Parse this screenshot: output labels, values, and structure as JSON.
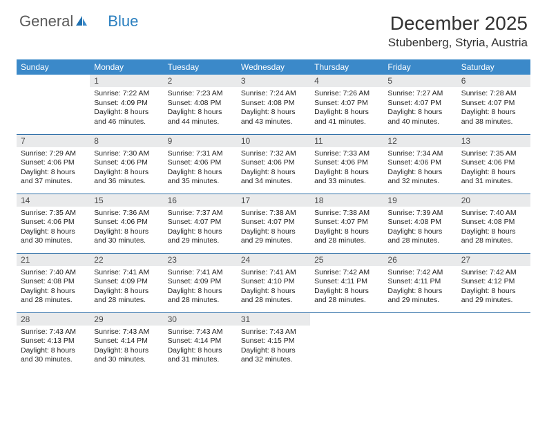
{
  "logo": {
    "text1": "General",
    "text2": "Blue"
  },
  "title": {
    "month": "December 2025",
    "location": "Stubenberg, Styria, Austria"
  },
  "colors": {
    "header_bg": "#3b89c9",
    "header_text": "#ffffff",
    "daynum_bg": "#e9eaeb",
    "row_border": "#2f6fa8",
    "body_text": "#222222",
    "logo_gray": "#5a5a5a",
    "logo_blue": "#2a7fbf"
  },
  "weekdays": [
    "Sunday",
    "Monday",
    "Tuesday",
    "Wednesday",
    "Thursday",
    "Friday",
    "Saturday"
  ],
  "weeks": [
    [
      {
        "n": "",
        "sr": "",
        "ss": "",
        "dl": "",
        "empty": true
      },
      {
        "n": "1",
        "sr": "Sunrise: 7:22 AM",
        "ss": "Sunset: 4:09 PM",
        "dl": "Daylight: 8 hours and 46 minutes."
      },
      {
        "n": "2",
        "sr": "Sunrise: 7:23 AM",
        "ss": "Sunset: 4:08 PM",
        "dl": "Daylight: 8 hours and 44 minutes."
      },
      {
        "n": "3",
        "sr": "Sunrise: 7:24 AM",
        "ss": "Sunset: 4:08 PM",
        "dl": "Daylight: 8 hours and 43 minutes."
      },
      {
        "n": "4",
        "sr": "Sunrise: 7:26 AM",
        "ss": "Sunset: 4:07 PM",
        "dl": "Daylight: 8 hours and 41 minutes."
      },
      {
        "n": "5",
        "sr": "Sunrise: 7:27 AM",
        "ss": "Sunset: 4:07 PM",
        "dl": "Daylight: 8 hours and 40 minutes."
      },
      {
        "n": "6",
        "sr": "Sunrise: 7:28 AM",
        "ss": "Sunset: 4:07 PM",
        "dl": "Daylight: 8 hours and 38 minutes."
      }
    ],
    [
      {
        "n": "7",
        "sr": "Sunrise: 7:29 AM",
        "ss": "Sunset: 4:06 PM",
        "dl": "Daylight: 8 hours and 37 minutes."
      },
      {
        "n": "8",
        "sr": "Sunrise: 7:30 AM",
        "ss": "Sunset: 4:06 PM",
        "dl": "Daylight: 8 hours and 36 minutes."
      },
      {
        "n": "9",
        "sr": "Sunrise: 7:31 AM",
        "ss": "Sunset: 4:06 PM",
        "dl": "Daylight: 8 hours and 35 minutes."
      },
      {
        "n": "10",
        "sr": "Sunrise: 7:32 AM",
        "ss": "Sunset: 4:06 PM",
        "dl": "Daylight: 8 hours and 34 minutes."
      },
      {
        "n": "11",
        "sr": "Sunrise: 7:33 AM",
        "ss": "Sunset: 4:06 PM",
        "dl": "Daylight: 8 hours and 33 minutes."
      },
      {
        "n": "12",
        "sr": "Sunrise: 7:34 AM",
        "ss": "Sunset: 4:06 PM",
        "dl": "Daylight: 8 hours and 32 minutes."
      },
      {
        "n": "13",
        "sr": "Sunrise: 7:35 AM",
        "ss": "Sunset: 4:06 PM",
        "dl": "Daylight: 8 hours and 31 minutes."
      }
    ],
    [
      {
        "n": "14",
        "sr": "Sunrise: 7:35 AM",
        "ss": "Sunset: 4:06 PM",
        "dl": "Daylight: 8 hours and 30 minutes."
      },
      {
        "n": "15",
        "sr": "Sunrise: 7:36 AM",
        "ss": "Sunset: 4:06 PM",
        "dl": "Daylight: 8 hours and 30 minutes."
      },
      {
        "n": "16",
        "sr": "Sunrise: 7:37 AM",
        "ss": "Sunset: 4:07 PM",
        "dl": "Daylight: 8 hours and 29 minutes."
      },
      {
        "n": "17",
        "sr": "Sunrise: 7:38 AM",
        "ss": "Sunset: 4:07 PM",
        "dl": "Daylight: 8 hours and 29 minutes."
      },
      {
        "n": "18",
        "sr": "Sunrise: 7:38 AM",
        "ss": "Sunset: 4:07 PM",
        "dl": "Daylight: 8 hours and 28 minutes."
      },
      {
        "n": "19",
        "sr": "Sunrise: 7:39 AM",
        "ss": "Sunset: 4:08 PM",
        "dl": "Daylight: 8 hours and 28 minutes."
      },
      {
        "n": "20",
        "sr": "Sunrise: 7:40 AM",
        "ss": "Sunset: 4:08 PM",
        "dl": "Daylight: 8 hours and 28 minutes."
      }
    ],
    [
      {
        "n": "21",
        "sr": "Sunrise: 7:40 AM",
        "ss": "Sunset: 4:08 PM",
        "dl": "Daylight: 8 hours and 28 minutes."
      },
      {
        "n": "22",
        "sr": "Sunrise: 7:41 AM",
        "ss": "Sunset: 4:09 PM",
        "dl": "Daylight: 8 hours and 28 minutes."
      },
      {
        "n": "23",
        "sr": "Sunrise: 7:41 AM",
        "ss": "Sunset: 4:09 PM",
        "dl": "Daylight: 8 hours and 28 minutes."
      },
      {
        "n": "24",
        "sr": "Sunrise: 7:41 AM",
        "ss": "Sunset: 4:10 PM",
        "dl": "Daylight: 8 hours and 28 minutes."
      },
      {
        "n": "25",
        "sr": "Sunrise: 7:42 AM",
        "ss": "Sunset: 4:11 PM",
        "dl": "Daylight: 8 hours and 28 minutes."
      },
      {
        "n": "26",
        "sr": "Sunrise: 7:42 AM",
        "ss": "Sunset: 4:11 PM",
        "dl": "Daylight: 8 hours and 29 minutes."
      },
      {
        "n": "27",
        "sr": "Sunrise: 7:42 AM",
        "ss": "Sunset: 4:12 PM",
        "dl": "Daylight: 8 hours and 29 minutes."
      }
    ],
    [
      {
        "n": "28",
        "sr": "Sunrise: 7:43 AM",
        "ss": "Sunset: 4:13 PM",
        "dl": "Daylight: 8 hours and 30 minutes."
      },
      {
        "n": "29",
        "sr": "Sunrise: 7:43 AM",
        "ss": "Sunset: 4:14 PM",
        "dl": "Daylight: 8 hours and 30 minutes."
      },
      {
        "n": "30",
        "sr": "Sunrise: 7:43 AM",
        "ss": "Sunset: 4:14 PM",
        "dl": "Daylight: 8 hours and 31 minutes."
      },
      {
        "n": "31",
        "sr": "Sunrise: 7:43 AM",
        "ss": "Sunset: 4:15 PM",
        "dl": "Daylight: 8 hours and 32 minutes."
      },
      {
        "n": "",
        "sr": "",
        "ss": "",
        "dl": "",
        "empty": true
      },
      {
        "n": "",
        "sr": "",
        "ss": "",
        "dl": "",
        "empty": true
      },
      {
        "n": "",
        "sr": "",
        "ss": "",
        "dl": "",
        "empty": true
      }
    ]
  ]
}
